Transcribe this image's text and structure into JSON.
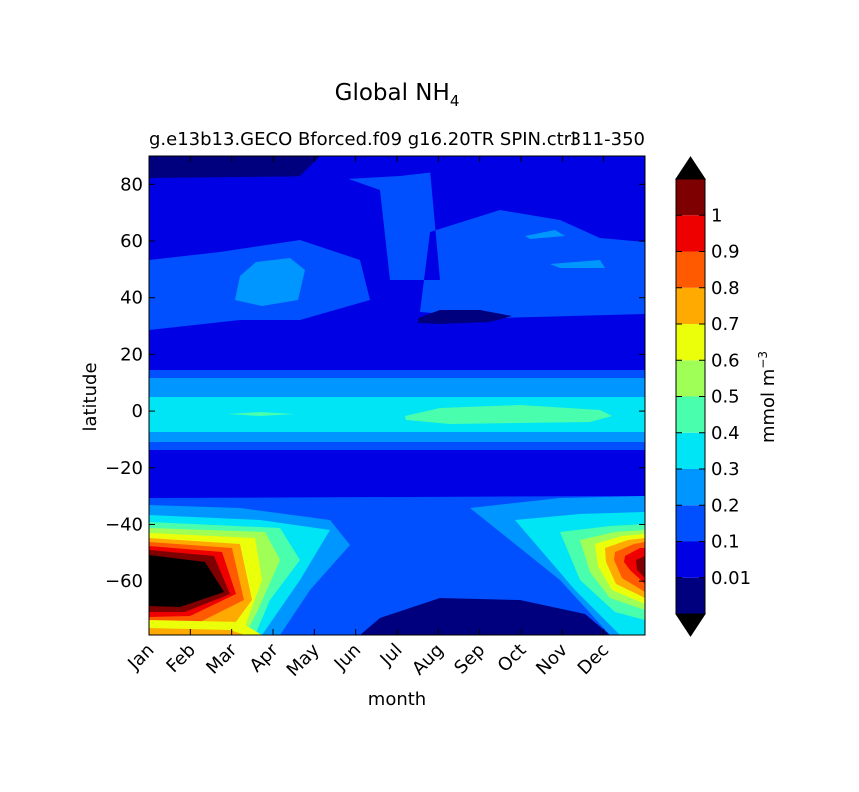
{
  "chart_data": {
    "type": "heatmap",
    "title": "Global NH",
    "title_subscript": "4",
    "subtitle_left": "g.e13b13.GECO Bforced.f09 g16.20TR SPIN.ctrl",
    "subtitle_right": "311-350",
    "xlabel": "month",
    "ylabel": "latitude",
    "x_ticks": [
      "Jan",
      "Feb",
      "Mar",
      "Apr",
      "May",
      "Jun",
      "Jul",
      "Aug",
      "Sep",
      "Oct",
      "Nov",
      "Dec"
    ],
    "y_ticks": [
      "80",
      "60",
      "40",
      "20",
      "0",
      "−20",
      "−40",
      "−60"
    ],
    "y_tick_values": [
      80,
      60,
      40,
      20,
      0,
      -20,
      -40,
      -60
    ],
    "ylim": [
      -79,
      90
    ],
    "colorbar": {
      "label": "mmol m",
      "label_superscript": "−3",
      "levels": [
        0.01,
        0.1,
        0.2,
        0.3,
        0.4,
        0.5,
        0.6,
        0.7,
        0.8,
        0.9,
        1
      ],
      "level_labels": [
        "0.01",
        "0.1",
        "0.2",
        "0.3",
        "0.4",
        "0.5",
        "0.6",
        "0.7",
        "0.8",
        "0.9",
        "1"
      ],
      "colors": [
        "#00007f",
        "#0000e5",
        "#0050ff",
        "#0096ff",
        "#00e5f5",
        "#49ffad",
        "#a0ff56",
        "#ecff0a",
        "#ffaa00",
        "#ff5a00",
        "#ef0000",
        "#7f0000"
      ],
      "over_color": "#000000",
      "under_color": "#000000",
      "extend": "both"
    }
  }
}
